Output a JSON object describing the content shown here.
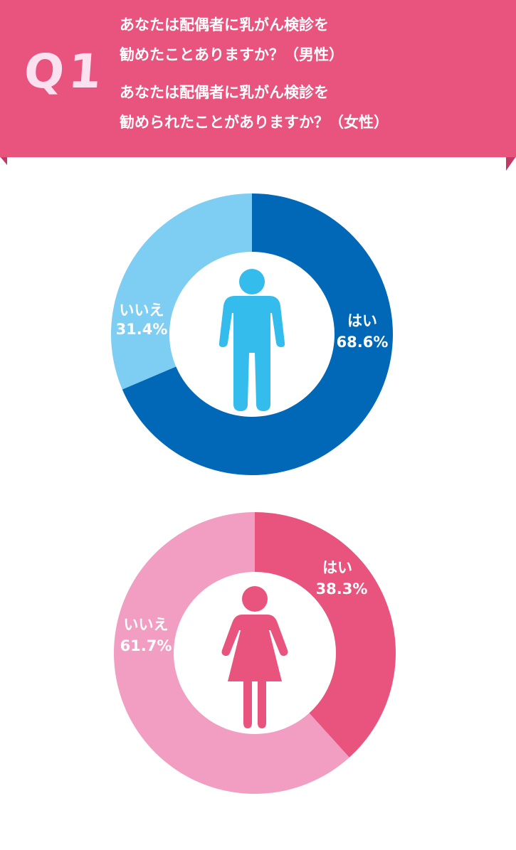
{
  "header": {
    "q_label": "Q1",
    "question_lines": [
      "あなたは配偶者に乳がん検診を",
      "勧めたことありますか？（男性）",
      "あなたは配偶者に乳がん検診を",
      "勧められたことがありますか？（女性）"
    ],
    "banner_color": "#e9547f",
    "banner_fold_color": "#c23a63"
  },
  "chart_data": [
    {
      "type": "pie",
      "variant": "donut",
      "center_icon": "male-figure-icon",
      "categories": [
        "はい",
        "いいえ"
      ],
      "values": [
        68.6,
        31.4
      ],
      "value_labels": [
        "68.6%",
        "31.4%"
      ],
      "colors": [
        "#0068b7",
        "#7ecef4"
      ],
      "icon_color": "#33bcec"
    },
    {
      "type": "pie",
      "variant": "donut",
      "center_icon": "female-figure-icon",
      "categories": [
        "はい",
        "いいえ"
      ],
      "values": [
        38.3,
        61.7
      ],
      "value_labels": [
        "38.3%",
        "61.7%"
      ],
      "colors": [
        "#e9547f",
        "#f19ec2"
      ],
      "icon_color": "#e9547f"
    }
  ]
}
